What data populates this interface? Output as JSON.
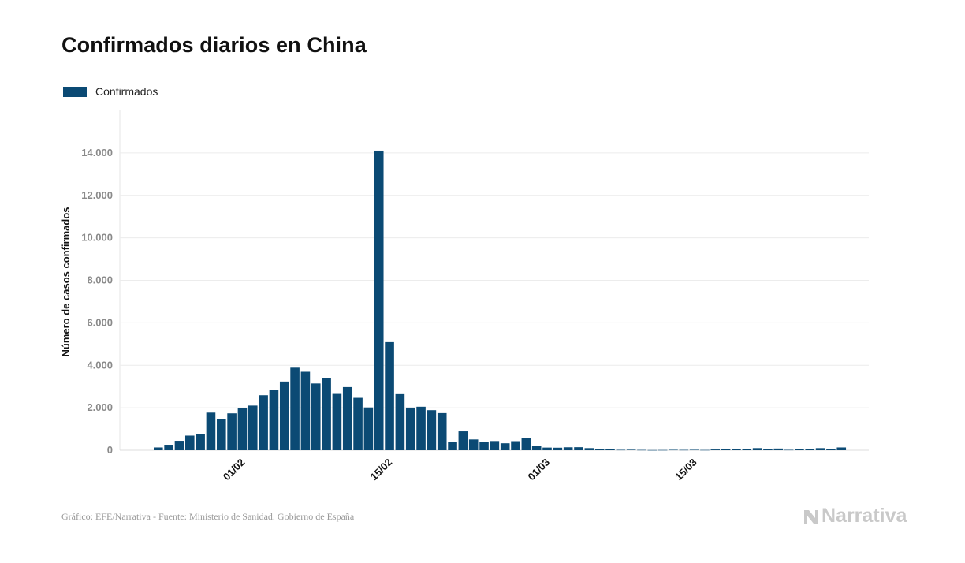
{
  "title": "Confirmados diarios en China",
  "legend": {
    "label": "Confirmados",
    "color": "#0b4a74"
  },
  "footer": {
    "source": "Gráfico: EFE/Narrativa - Fuente: Ministerio de Sanidad. Gobierno de España",
    "brand": "Narrativa"
  },
  "chart_data": {
    "type": "bar",
    "title": "Confirmados diarios en China",
    "xlabel": "",
    "ylabel": "Número de casos confirmados",
    "ylim": [
      0,
      16000
    ],
    "yticks": [
      0,
      2000,
      4000,
      6000,
      8000,
      10000,
      12000,
      14000
    ],
    "ytick_labels": [
      "0",
      "2.000",
      "4.000",
      "6.000",
      "8.000",
      "10.000",
      "12.000",
      "14.000"
    ],
    "xtick_labels": [
      {
        "index": 8,
        "label": "01/02"
      },
      {
        "index": 22,
        "label": "15/02"
      },
      {
        "index": 37,
        "label": "01/03"
      },
      {
        "index": 51,
        "label": "15/03"
      }
    ],
    "grid": true,
    "legend_position": "top-left",
    "series": [
      {
        "name": "Confirmados",
        "color": "#0b4a74",
        "values": [
          131,
          259,
          444,
          688,
          769,
          1771,
          1459,
          1737,
          1982,
          2102,
          2590,
          2829,
          3235,
          3887,
          3694,
          3143,
          3385,
          2652,
          2973,
          2467,
          2015,
          14108,
          5090,
          2641,
          2008,
          2048,
          1886,
          1749,
          394,
          889,
          508,
          406,
          433,
          327,
          427,
          573,
          202,
          125,
          119,
          139,
          143,
          99,
          44,
          40,
          19,
          24,
          15,
          8,
          11,
          20,
          16,
          21,
          13,
          34,
          39,
          41,
          46,
          99,
          44,
          80,
          19,
          54,
          67,
          98,
          70,
          131
        ]
      }
    ]
  }
}
